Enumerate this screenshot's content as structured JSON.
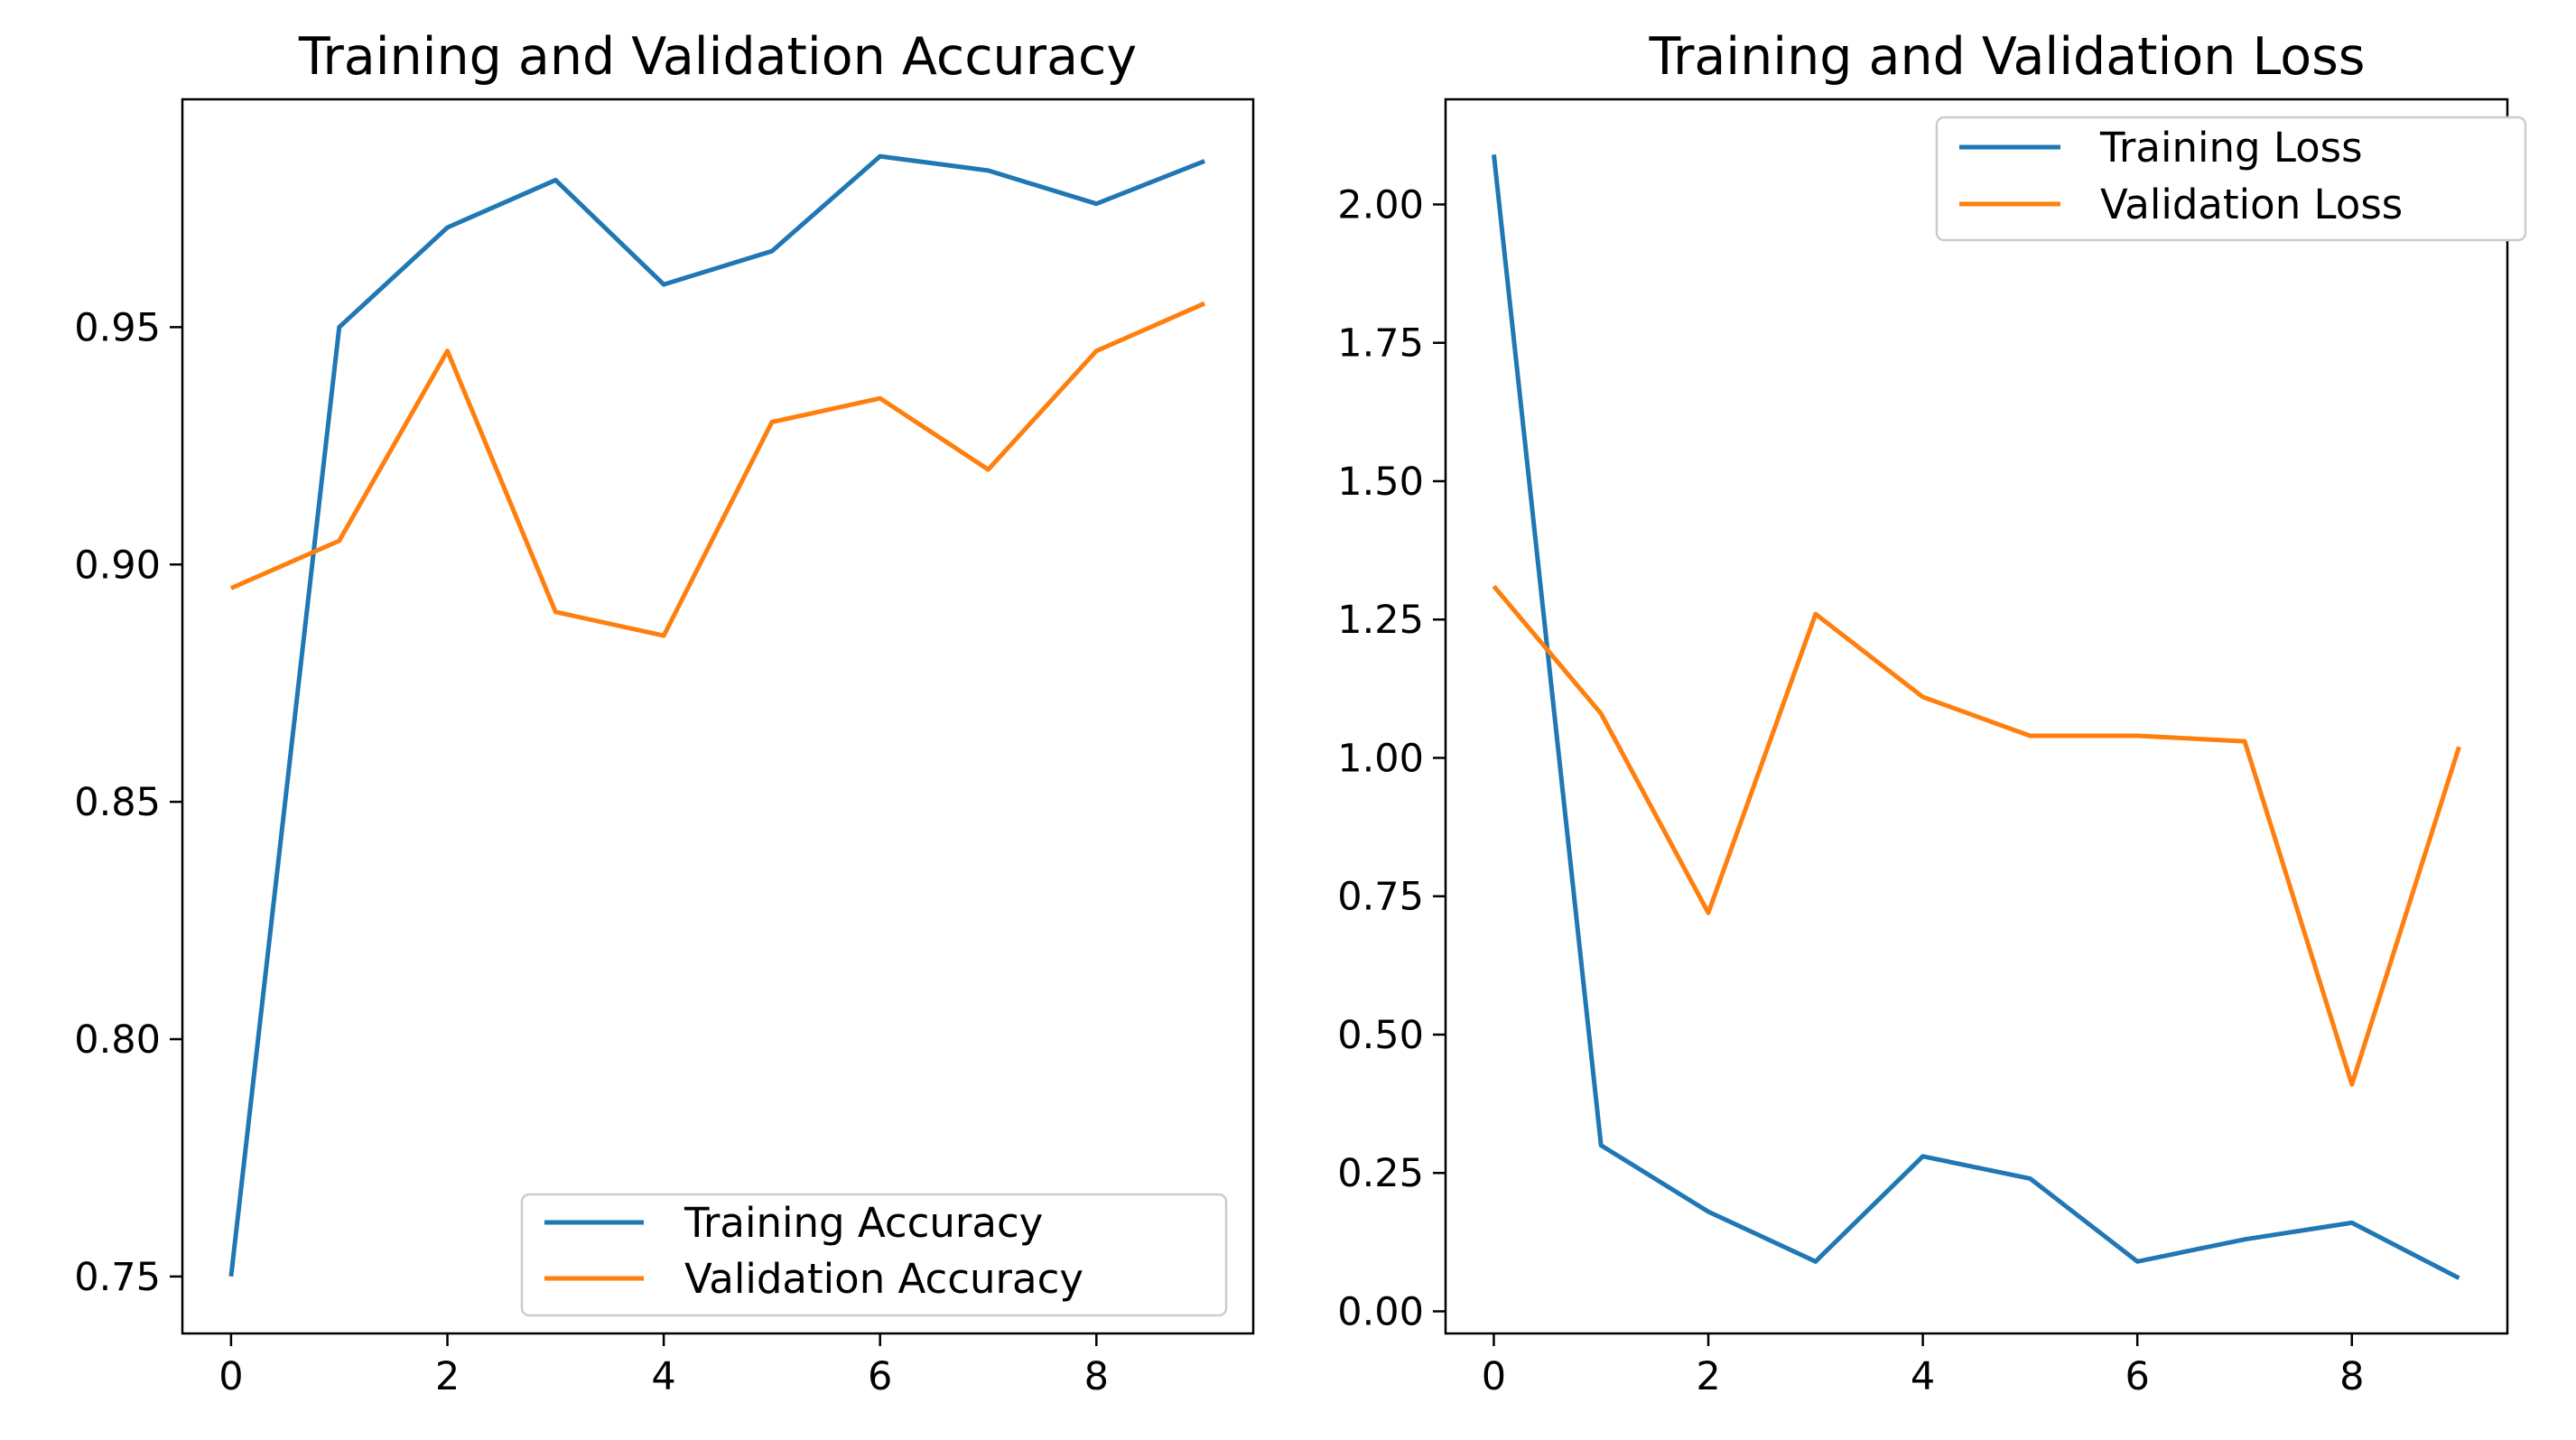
{
  "chart_data": [
    {
      "type": "line",
      "title": "Training and Validation Accuracy",
      "xlabel": "",
      "ylabel": "",
      "x": [
        0,
        1,
        2,
        3,
        4,
        5,
        6,
        7,
        8,
        9
      ],
      "xticks": [
        0,
        2,
        4,
        6,
        8
      ],
      "xlim": [
        -0.45,
        9.45
      ],
      "yticks": [
        0.75,
        0.8,
        0.85,
        0.9,
        0.95
      ],
      "ytick_labels": [
        "0.75",
        "0.80",
        "0.85",
        "0.90",
        "0.95"
      ],
      "ylim": [
        0.738,
        0.998
      ],
      "legend_position": "lower-right",
      "series": [
        {
          "name": "Training Accuracy",
          "color": "#1f77b4",
          "values": [
            0.75,
            0.95,
            0.971,
            0.981,
            0.959,
            0.966,
            0.986,
            0.983,
            0.976,
            0.985
          ]
        },
        {
          "name": "Validation Accuracy",
          "color": "#ff7f0e",
          "values": [
            0.895,
            0.905,
            0.945,
            0.89,
            0.885,
            0.93,
            0.935,
            0.92,
            0.945,
            0.955
          ]
        }
      ]
    },
    {
      "type": "line",
      "title": "Training and Validation Loss",
      "xlabel": "",
      "ylabel": "",
      "x": [
        0,
        1,
        2,
        3,
        4,
        5,
        6,
        7,
        8,
        9
      ],
      "xticks": [
        0,
        2,
        4,
        6,
        8
      ],
      "xlim": [
        -0.45,
        9.45
      ],
      "yticks": [
        0.0,
        0.25,
        0.5,
        0.75,
        1.0,
        1.25,
        1.5,
        1.75,
        2.0
      ],
      "ytick_labels": [
        "0.00",
        "0.25",
        "0.50",
        "0.75",
        "1.00",
        "1.25",
        "1.50",
        "1.75",
        "2.00"
      ],
      "ylim": [
        -0.04,
        2.19
      ],
      "legend_position": "upper-right",
      "series": [
        {
          "name": "Training Loss",
          "color": "#1f77b4",
          "values": [
            2.09,
            0.3,
            0.18,
            0.09,
            0.28,
            0.24,
            0.09,
            0.13,
            0.16,
            0.06
          ]
        },
        {
          "name": "Validation Loss",
          "color": "#ff7f0e",
          "values": [
            1.31,
            1.08,
            0.72,
            1.26,
            1.11,
            1.04,
            1.04,
            1.03,
            0.41,
            1.02
          ]
        }
      ]
    }
  ]
}
